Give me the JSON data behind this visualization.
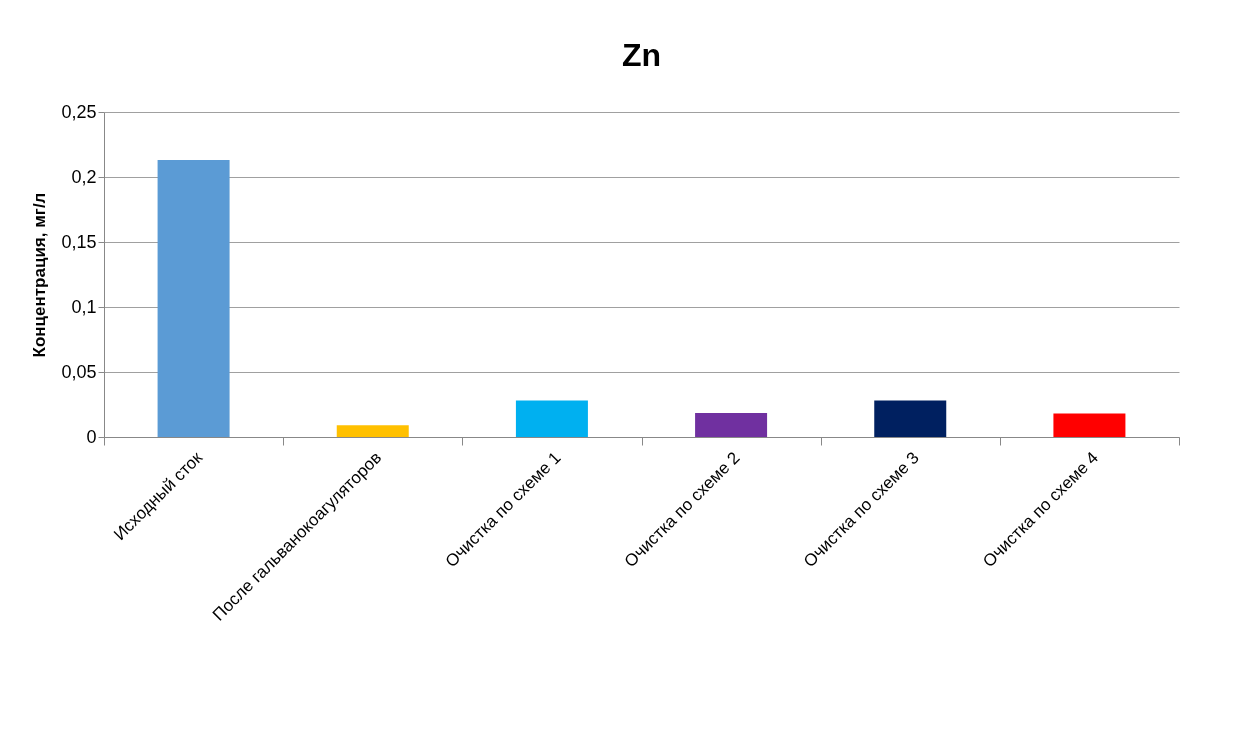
{
  "chart_data": {
    "type": "bar",
    "title": "Zn",
    "ylabel": "Концентрация, мг/л",
    "categories": [
      "Исходный сток",
      "После гальванокоагуляторов",
      "Очистка по схеме 1",
      "Очистка по схеме 2",
      "Очистка по схеме 3",
      "Очистка по схеме 4"
    ],
    "values": [
      0.213,
      0.009,
      0.028,
      0.0185,
      0.028,
      0.018
    ],
    "colors": [
      "#5b9bd5",
      "#ffc000",
      "#00b0f0",
      "#7030a0",
      "#002060",
      "#ff0000"
    ],
    "ylim": [
      0,
      0.25
    ],
    "yticks": [
      0,
      {
        "value": 0.05,
        "label": "0,05"
      },
      {
        "value": 0.1,
        "label": "0,1"
      },
      {
        "value": 0.15,
        "label": "0,15"
      },
      {
        "value": 0.2,
        "label": "0,2"
      },
      {
        "value": 0.25,
        "label": "0,25"
      }
    ],
    "grid": "y",
    "legend": false
  }
}
